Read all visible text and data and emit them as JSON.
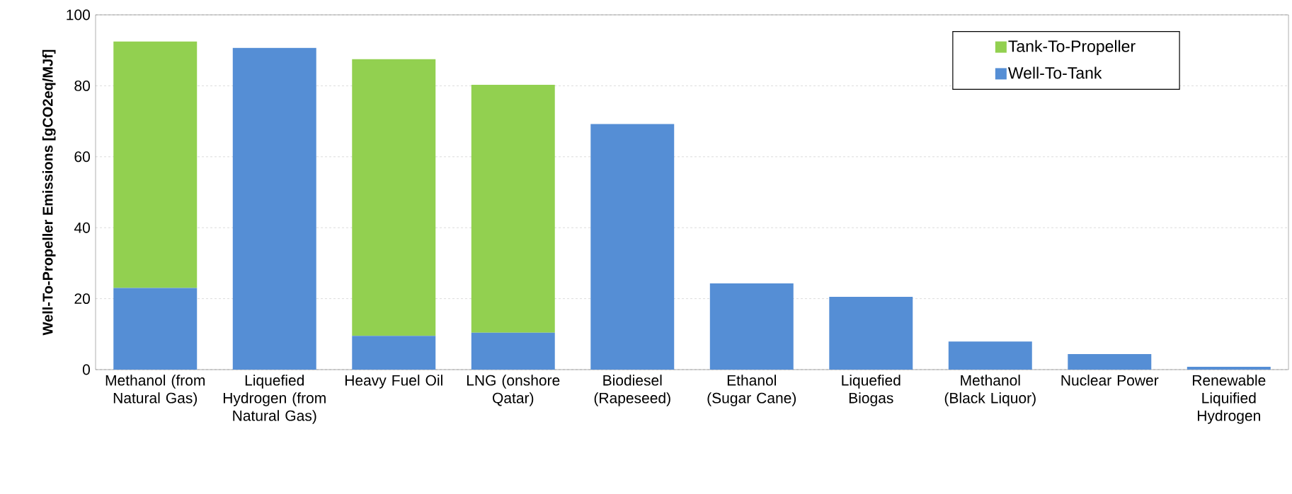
{
  "chart_data": {
    "type": "bar",
    "stacked": true,
    "ylabel": "Well-To-Propeller Emissions [gCO2eq/MJf]",
    "categories": [
      "Methanol (from Natural Gas)",
      "Liquefied Hydrogen (from Natural Gas)",
      "Heavy Fuel Oil",
      "LNG (onshore Qatar)",
      "Biodiesel (Rapeseed)",
      "Ethanol (Sugar Cane)",
      "Liquefied Biogas",
      "Methanol (Black Liquor)",
      "Nuclear Power",
      "Renewable Liquified Hydrogen"
    ],
    "series": [
      {
        "name": "Well-To-Tank",
        "color": "#558ed5",
        "values": [
          23.0,
          90.7,
          9.5,
          10.4,
          69.2,
          24.3,
          20.5,
          7.9,
          4.4,
          0.8
        ]
      },
      {
        "name": "Tank-To-Propeller",
        "color": "#92d050",
        "values": [
          69.5,
          null,
          78.0,
          69.9,
          null,
          null,
          null,
          null,
          null,
          null
        ]
      }
    ],
    "ylim": [
      0,
      100
    ],
    "yticks": [
      0,
      20,
      40,
      60,
      80,
      100
    ],
    "grid": "y",
    "legend": "top right"
  }
}
